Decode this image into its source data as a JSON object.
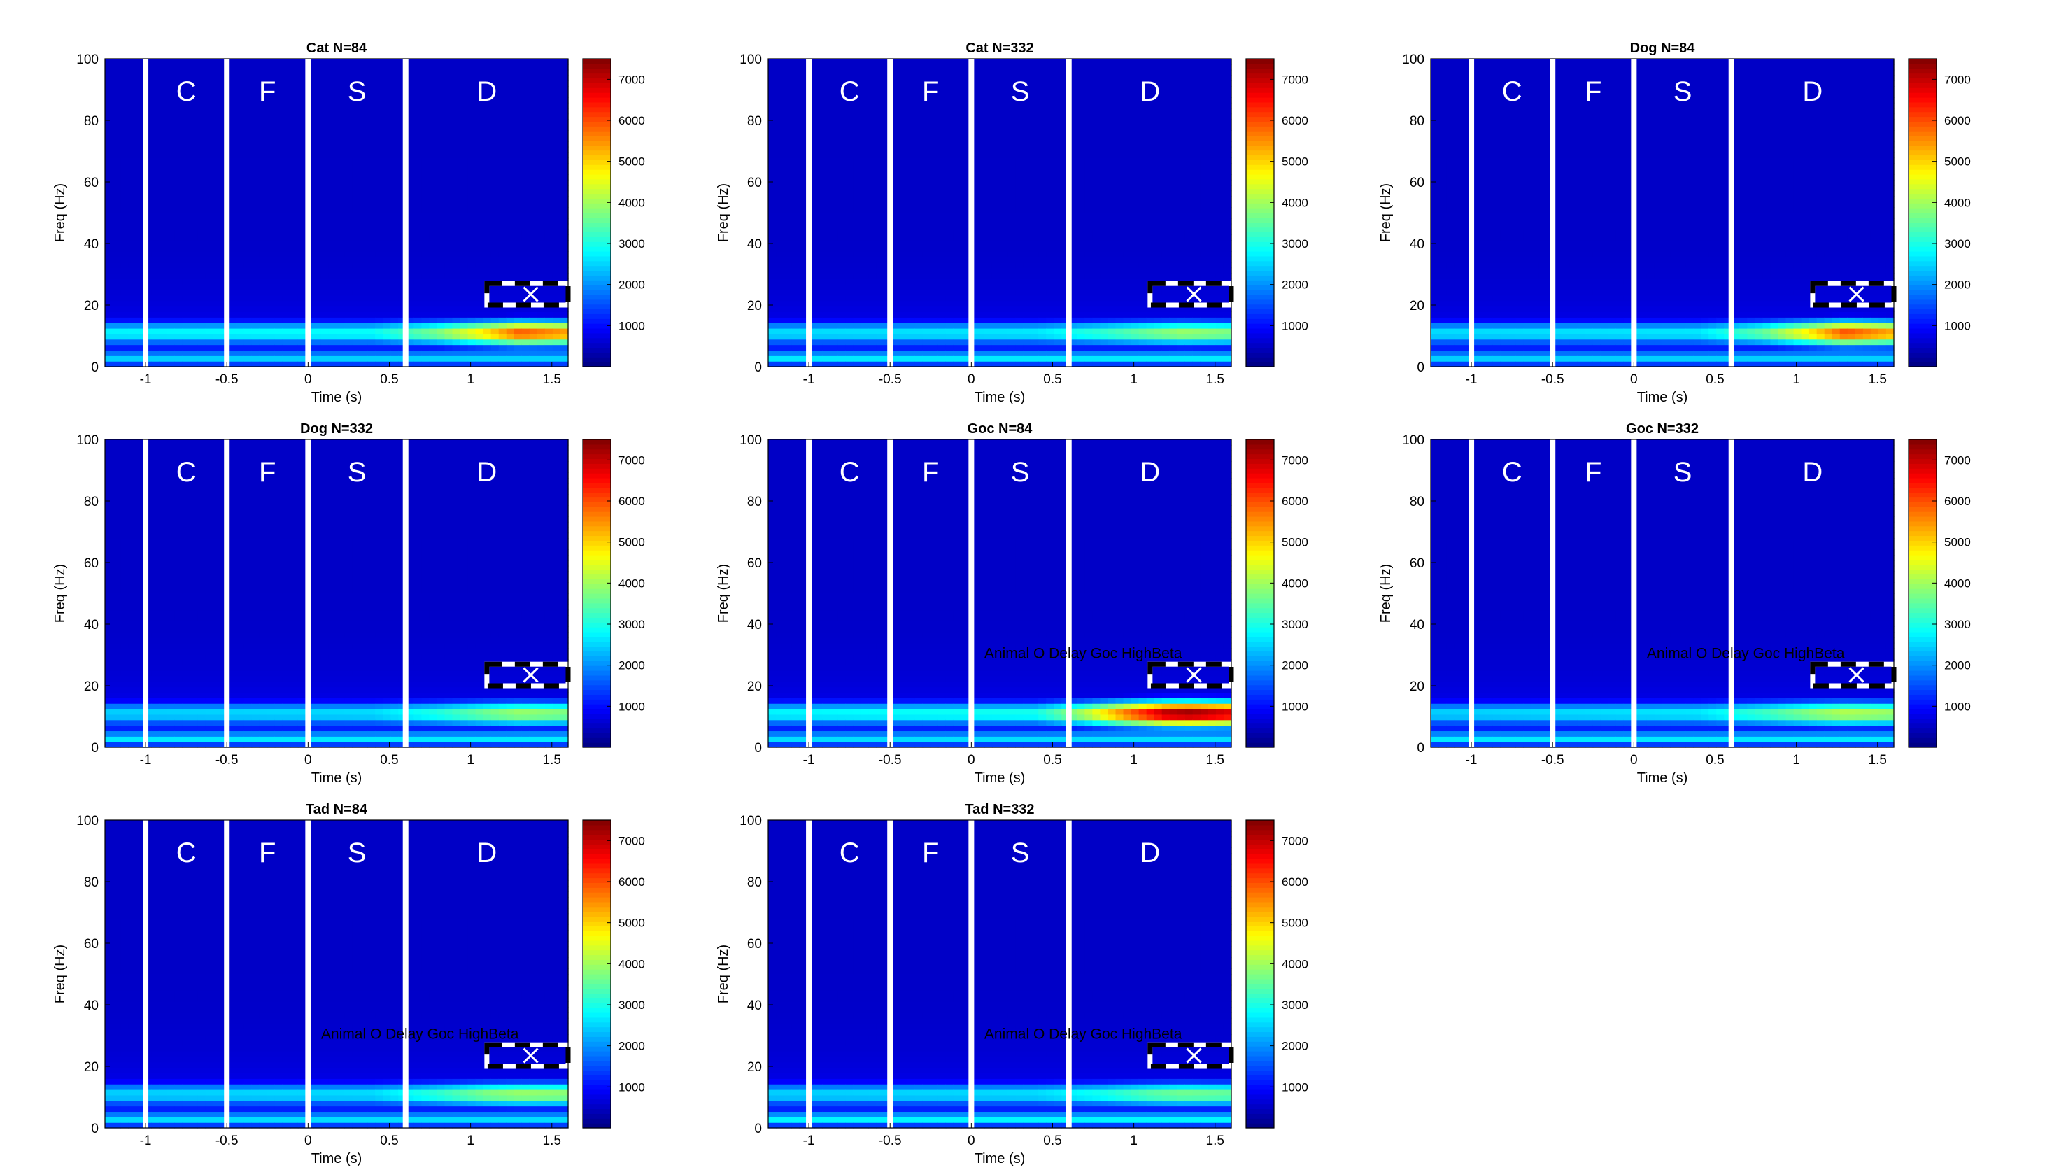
{
  "chart_data": [
    {
      "type": "heatmap",
      "title": "Cat N=84",
      "xlabel": "Time (s)",
      "ylabel": "Freq (Hz)",
      "xlim": [
        -1.25,
        1.6
      ],
      "ylim": [
        0,
        100
      ],
      "xticks": [
        "-1",
        "-0.5",
        "0",
        "0.5",
        "1",
        "1.5"
      ],
      "yticks": [
        "0",
        "20",
        "40",
        "60",
        "80",
        "100"
      ],
      "clim": [
        0,
        7500
      ],
      "colorbar_ticks": [
        "1000",
        "2000",
        "3000",
        "4000",
        "5000",
        "6000",
        "7000"
      ],
      "colormap": "jet",
      "epoch_boundaries": [
        -1.0,
        -0.5,
        0.0,
        0.6
      ],
      "epoch_labels": [
        "C",
        "F",
        "S",
        "D"
      ],
      "roi_box": {
        "t": [
          1.1,
          1.6
        ],
        "f": [
          20,
          27
        ]
      },
      "roi_marker": {
        "t": 1.37,
        "f": 23.5
      },
      "annotation": "",
      "peak": {
        "t": 1.3,
        "f": 11,
        "power": 6000
      },
      "delay_band": {
        "f": 11,
        "power_at_t": [
          [
            -1.25,
            2800
          ],
          [
            0.4,
            2900
          ],
          [
            0.8,
            3800
          ],
          [
            1.1,
            5000
          ],
          [
            1.3,
            6000
          ],
          [
            1.6,
            5500
          ]
        ]
      },
      "low_band": {
        "f": 3,
        "power": 2500
      }
    },
    {
      "type": "heatmap",
      "title": "Cat N=332",
      "xlabel": "Time (s)",
      "ylabel": "Freq (Hz)",
      "xlim": [
        -1.25,
        1.6
      ],
      "ylim": [
        0,
        100
      ],
      "xticks": [
        "-1",
        "-0.5",
        "0",
        "0.5",
        "1",
        "1.5"
      ],
      "yticks": [
        "0",
        "20",
        "40",
        "60",
        "80",
        "100"
      ],
      "clim": [
        0,
        7500
      ],
      "colorbar_ticks": [
        "1000",
        "2000",
        "3000",
        "4000",
        "5000",
        "6000",
        "7000"
      ],
      "colormap": "jet",
      "epoch_boundaries": [
        -1.0,
        -0.5,
        0.0,
        0.6
      ],
      "epoch_labels": [
        "C",
        "F",
        "S",
        "D"
      ],
      "roi_box": {
        "t": [
          1.1,
          1.6
        ],
        "f": [
          20,
          27
        ]
      },
      "roi_marker": {
        "t": 1.37,
        "f": 23.5
      },
      "annotation": "",
      "peak": {
        "t": 1.3,
        "f": 11,
        "power": 4000
      },
      "delay_band": {
        "f": 11,
        "power_at_t": [
          [
            -1.25,
            2600
          ],
          [
            0.4,
            2700
          ],
          [
            0.8,
            3200
          ],
          [
            1.1,
            3700
          ],
          [
            1.3,
            4000
          ],
          [
            1.6,
            3800
          ]
        ]
      },
      "low_band": {
        "f": 3,
        "power": 2700
      }
    },
    {
      "type": "heatmap",
      "title": "Dog N=84",
      "xlabel": "Time (s)",
      "ylabel": "Freq (Hz)",
      "xlim": [
        -1.25,
        1.6
      ],
      "ylim": [
        0,
        100
      ],
      "xticks": [
        "-1",
        "-0.5",
        "0",
        "0.5",
        "1",
        "1.5"
      ],
      "yticks": [
        "0",
        "20",
        "40",
        "60",
        "80",
        "100"
      ],
      "clim": [
        0,
        7500
      ],
      "colorbar_ticks": [
        "1000",
        "2000",
        "3000",
        "4000",
        "5000",
        "6000",
        "7000"
      ],
      "colormap": "jet",
      "epoch_boundaries": [
        -1.0,
        -0.5,
        0.0,
        0.6
      ],
      "epoch_labels": [
        "C",
        "F",
        "S",
        "D"
      ],
      "roi_box": {
        "t": [
          1.1,
          1.6
        ],
        "f": [
          20,
          27
        ]
      },
      "roi_marker": {
        "t": 1.37,
        "f": 23.5
      },
      "annotation": "",
      "peak": {
        "t": 1.3,
        "f": 11,
        "power": 6100
      },
      "delay_band": {
        "f": 11,
        "power_at_t": [
          [
            -1.25,
            2600
          ],
          [
            0.4,
            2700
          ],
          [
            0.8,
            3600
          ],
          [
            1.1,
            5000
          ],
          [
            1.3,
            6100
          ],
          [
            1.6,
            5400
          ]
        ]
      },
      "low_band": {
        "f": 3,
        "power": 2500
      }
    },
    {
      "type": "heatmap",
      "title": "Dog N=332",
      "xlabel": "Time (s)",
      "ylabel": "Freq (Hz)",
      "xlim": [
        -1.25,
        1.6
      ],
      "ylim": [
        0,
        100
      ],
      "xticks": [
        "-1",
        "-0.5",
        "0",
        "0.5",
        "1",
        "1.5"
      ],
      "yticks": [
        "0",
        "20",
        "40",
        "60",
        "80",
        "100"
      ],
      "clim": [
        0,
        7500
      ],
      "colorbar_ticks": [
        "1000",
        "2000",
        "3000",
        "4000",
        "5000",
        "6000",
        "7000"
      ],
      "colormap": "jet",
      "epoch_boundaries": [
        -1.0,
        -0.5,
        0.0,
        0.6
      ],
      "epoch_labels": [
        "C",
        "F",
        "S",
        "D"
      ],
      "roi_box": {
        "t": [
          1.1,
          1.6
        ],
        "f": [
          20,
          27
        ]
      },
      "roi_marker": {
        "t": 1.37,
        "f": 23.5
      },
      "annotation": "",
      "peak": {
        "t": 1.3,
        "f": 11,
        "power": 4000
      },
      "delay_band": {
        "f": 11,
        "power_at_t": [
          [
            -1.25,
            2500
          ],
          [
            0.4,
            2600
          ],
          [
            0.8,
            3100
          ],
          [
            1.1,
            3700
          ],
          [
            1.3,
            4000
          ],
          [
            1.6,
            3800
          ]
        ]
      },
      "low_band": {
        "f": 3,
        "power": 2700
      }
    },
    {
      "type": "heatmap",
      "title": "Goc N=84",
      "xlabel": "Time (s)",
      "ylabel": "Freq (Hz)",
      "xlim": [
        -1.25,
        1.6
      ],
      "ylim": [
        0,
        100
      ],
      "xticks": [
        "-1",
        "-0.5",
        "0",
        "0.5",
        "1",
        "1.5"
      ],
      "yticks": [
        "0",
        "20",
        "40",
        "60",
        "80",
        "100"
      ],
      "clim": [
        0,
        7500
      ],
      "colorbar_ticks": [
        "1000",
        "2000",
        "3000",
        "4000",
        "5000",
        "6000",
        "7000"
      ],
      "colormap": "jet",
      "epoch_boundaries": [
        -1.0,
        -0.5,
        0.0,
        0.6
      ],
      "epoch_labels": [
        "C",
        "F",
        "S",
        "D"
      ],
      "roi_box": {
        "t": [
          1.1,
          1.6
        ],
        "f": [
          20,
          27
        ]
      },
      "roi_marker": {
        "t": 1.37,
        "f": 23.5
      },
      "annotation": "Animal O Delay Goc HighBeta",
      "peak": {
        "t": 1.35,
        "f": 11,
        "power": 7400
      },
      "delay_band": {
        "f": 11,
        "power_at_t": [
          [
            -1.25,
            2800
          ],
          [
            0.4,
            3000
          ],
          [
            0.7,
            4200
          ],
          [
            0.95,
            5800
          ],
          [
            1.2,
            7200
          ],
          [
            1.35,
            7400
          ],
          [
            1.6,
            6900
          ]
        ]
      },
      "low_band": {
        "f": 3,
        "power": 2600
      }
    },
    {
      "type": "heatmap",
      "title": "Goc N=332",
      "xlabel": "Time (s)",
      "ylabel": "Freq (Hz)",
      "xlim": [
        -1.25,
        1.6
      ],
      "ylim": [
        0,
        100
      ],
      "xticks": [
        "-1",
        "-0.5",
        "0",
        "0.5",
        "1",
        "1.5"
      ],
      "yticks": [
        "0",
        "20",
        "40",
        "60",
        "80",
        "100"
      ],
      "clim": [
        0,
        7500
      ],
      "colorbar_ticks": [
        "1000",
        "2000",
        "3000",
        "4000",
        "5000",
        "6000",
        "7000"
      ],
      "colormap": "jet",
      "epoch_boundaries": [
        -1.0,
        -0.5,
        0.0,
        0.6
      ],
      "epoch_labels": [
        "C",
        "F",
        "S",
        "D"
      ],
      "roi_box": {
        "t": [
          1.1,
          1.6
        ],
        "f": [
          20,
          27
        ]
      },
      "roi_marker": {
        "t": 1.37,
        "f": 23.5
      },
      "annotation": "Animal O Delay Goc HighBeta",
      "peak": {
        "t": 1.3,
        "f": 11,
        "power": 4200
      },
      "delay_band": {
        "f": 11,
        "power_at_t": [
          [
            -1.25,
            2500
          ],
          [
            0.4,
            2700
          ],
          [
            0.8,
            3300
          ],
          [
            1.1,
            3900
          ],
          [
            1.3,
            4200
          ],
          [
            1.6,
            4000
          ]
        ]
      },
      "low_band": {
        "f": 3,
        "power": 2700
      }
    },
    {
      "type": "heatmap",
      "title": "Tad N=84",
      "xlabel": "Time (s)",
      "ylabel": "Freq (Hz)",
      "xlim": [
        -1.25,
        1.6
      ],
      "ylim": [
        0,
        100
      ],
      "xticks": [
        "-1",
        "-0.5",
        "0",
        "0.5",
        "1",
        "1.5"
      ],
      "yticks": [
        "0",
        "20",
        "40",
        "60",
        "80",
        "100"
      ],
      "clim": [
        0,
        7500
      ],
      "colorbar_ticks": [
        "1000",
        "2000",
        "3000",
        "4000",
        "5000",
        "6000",
        "7000"
      ],
      "colormap": "jet",
      "epoch_boundaries": [
        -1.0,
        -0.5,
        0.0,
        0.6
      ],
      "epoch_labels": [
        "C",
        "F",
        "S",
        "D"
      ],
      "roi_box": {
        "t": [
          1.1,
          1.6
        ],
        "f": [
          20,
          27
        ]
      },
      "roi_marker": {
        "t": 1.37,
        "f": 23.5
      },
      "annotation": "Animal O Delay Goc HighBeta",
      "peak": {
        "t": 1.3,
        "f": 11,
        "power": 4000
      },
      "delay_band": {
        "f": 11,
        "power_at_t": [
          [
            -1.25,
            2500
          ],
          [
            0.4,
            2600
          ],
          [
            0.8,
            3200
          ],
          [
            1.1,
            3800
          ],
          [
            1.3,
            4000
          ],
          [
            1.6,
            3900
          ]
        ]
      },
      "low_band": {
        "f": 3,
        "power": 2600
      }
    },
    {
      "type": "heatmap",
      "title": "Tad N=332",
      "xlabel": "Time (s)",
      "ylabel": "Freq (Hz)",
      "xlim": [
        -1.25,
        1.6
      ],
      "ylim": [
        0,
        100
      ],
      "xticks": [
        "-1",
        "-0.5",
        "0",
        "0.5",
        "1",
        "1.5"
      ],
      "yticks": [
        "0",
        "20",
        "40",
        "60",
        "80",
        "100"
      ],
      "clim": [
        0,
        7500
      ],
      "colorbar_ticks": [
        "1000",
        "2000",
        "3000",
        "4000",
        "5000",
        "6000",
        "7000"
      ],
      "colormap": "jet",
      "epoch_boundaries": [
        -1.0,
        -0.5,
        0.0,
        0.6
      ],
      "epoch_labels": [
        "C",
        "F",
        "S",
        "D"
      ],
      "roi_box": {
        "t": [
          1.1,
          1.6
        ],
        "f": [
          20,
          27
        ]
      },
      "roi_marker": {
        "t": 1.37,
        "f": 23.5
      },
      "annotation": "Animal O Delay Goc HighBeta",
      "peak": {
        "t": 1.3,
        "f": 11,
        "power": 3700
      },
      "delay_band": {
        "f": 11,
        "power_at_t": [
          [
            -1.25,
            2500
          ],
          [
            0.4,
            2600
          ],
          [
            0.8,
            3000
          ],
          [
            1.1,
            3500
          ],
          [
            1.3,
            3700
          ],
          [
            1.6,
            3600
          ]
        ]
      },
      "low_band": {
        "f": 3,
        "power": 2800
      }
    }
  ],
  "colors": {
    "background": "#ffffff",
    "separator": "#ffffff",
    "epoch_label": "#ffffff",
    "roi_dash_dark": "#000000",
    "roi_dash_light": "#ffffff"
  },
  "icons": {
    "roi_marker": "x-marker-icon"
  }
}
